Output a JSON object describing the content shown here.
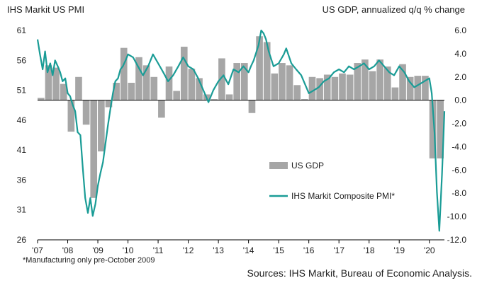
{
  "colors": {
    "bar": "#a6a6a6",
    "line": "#1a9c96",
    "axis": "#000000"
  },
  "chart_data": {
    "type": "bar+line",
    "left_axis_title": "IHS Markit US PMI",
    "right_axis_title": "US GDP, annualized q/q % change",
    "left_ticks": [
      "61",
      "56",
      "51",
      "46",
      "41",
      "36",
      "31",
      "26"
    ],
    "right_ticks": [
      "6.0",
      "4.0",
      "2.0",
      "0.0",
      "-2.0",
      "-4.0",
      "-6.0",
      "-8.0",
      "-10.0",
      "-12.0"
    ],
    "x_ticks": [
      "'07",
      "'08",
      "'09",
      "'10",
      "'11",
      "'12",
      "'13",
      "'14",
      "'15",
      "'16",
      "'17",
      "'18",
      "'19",
      "'20"
    ],
    "ylim_left": [
      26,
      61
    ],
    "ylim_right": [
      -12,
      6
    ],
    "legend": [
      {
        "name": "US GDP",
        "type": "bar"
      },
      {
        "name": "IHS Markit Composite PMI*",
        "type": "line"
      }
    ],
    "series": [
      {
        "name": "US GDP",
        "type": "bar",
        "axis": "right",
        "x": [
          2007.0,
          2007.25,
          2007.5,
          2007.75,
          2008.0,
          2008.25,
          2008.5,
          2008.75,
          2009.0,
          2009.25,
          2009.5,
          2009.75,
          2010.0,
          2010.25,
          2010.5,
          2010.75,
          2011.0,
          2011.25,
          2011.5,
          2011.75,
          2012.0,
          2012.25,
          2012.5,
          2012.75,
          2013.0,
          2013.25,
          2013.5,
          2013.75,
          2014.0,
          2014.25,
          2014.5,
          2014.75,
          2015.0,
          2015.25,
          2015.5,
          2015.75,
          2016.0,
          2016.25,
          2016.5,
          2016.75,
          2017.0,
          2017.25,
          2017.5,
          2017.75,
          2018.0,
          2018.25,
          2018.5,
          2018.75,
          2019.0,
          2019.25,
          2019.5,
          2019.75,
          2020.0,
          2020.25
        ],
        "values": [
          0.2,
          3.0,
          2.8,
          1.4,
          -2.7,
          2.0,
          -2.1,
          -8.4,
          -4.4,
          -0.6,
          1.5,
          4.5,
          1.5,
          3.7,
          3.0,
          2.0,
          -1.5,
          2.9,
          0.8,
          4.6,
          2.7,
          1.9,
          0.5,
          0.1,
          3.6,
          0.5,
          3.2,
          3.2,
          -1.1,
          5.5,
          5.0,
          2.3,
          3.2,
          3.0,
          1.3,
          0.1,
          2.0,
          1.9,
          2.2,
          2.0,
          2.3,
          2.2,
          3.2,
          3.5,
          2.5,
          3.5,
          2.9,
          1.1,
          3.1,
          2.0,
          2.1,
          2.1,
          -5.0,
          -5.0
        ]
      },
      {
        "name": "IHS Markit Composite PMI*",
        "type": "line",
        "axis": "left",
        "x": [
          2007.0,
          2007.08,
          2007.17,
          2007.25,
          2007.33,
          2007.42,
          2007.5,
          2007.58,
          2007.67,
          2007.75,
          2007.83,
          2007.92,
          2008.0,
          2008.08,
          2008.17,
          2008.25,
          2008.33,
          2008.42,
          2008.5,
          2008.58,
          2008.67,
          2008.75,
          2008.83,
          2008.92,
          2009.0,
          2009.08,
          2009.17,
          2009.25,
          2009.33,
          2009.42,
          2009.5,
          2009.58,
          2009.67,
          2009.75,
          2009.83,
          2009.92,
          2010.0,
          2010.17,
          2010.33,
          2010.5,
          2010.67,
          2010.83,
          2011.0,
          2011.17,
          2011.33,
          2011.5,
          2011.67,
          2011.83,
          2012.0,
          2012.17,
          2012.33,
          2012.5,
          2012.67,
          2012.83,
          2013.0,
          2013.17,
          2013.33,
          2013.5,
          2013.67,
          2013.83,
          2014.0,
          2014.08,
          2014.17,
          2014.33,
          2014.42,
          2014.5,
          2014.58,
          2014.67,
          2014.83,
          2015.0,
          2015.17,
          2015.25,
          2015.42,
          2015.58,
          2015.75,
          2016.0,
          2016.17,
          2016.33,
          2016.5,
          2016.67,
          2016.83,
          2017.0,
          2017.17,
          2017.33,
          2017.5,
          2017.67,
          2017.83,
          2018.0,
          2018.17,
          2018.33,
          2018.5,
          2018.67,
          2018.83,
          2019.0,
          2019.17,
          2019.33,
          2019.5,
          2019.67,
          2019.83,
          2020.0,
          2020.08,
          2020.17,
          2020.25,
          2020.33,
          2020.42,
          2020.5
        ],
        "values": [
          59.5,
          57.0,
          54.5,
          57.5,
          54.0,
          55.5,
          53.5,
          56.0,
          55.0,
          54.0,
          52.5,
          53.0,
          50.5,
          50.0,
          48.5,
          47.5,
          44.0,
          43.5,
          38.0,
          33.0,
          30.5,
          33.0,
          30.0,
          32.0,
          35.0,
          37.0,
          39.0,
          42.0,
          45.0,
          48.0,
          50.5,
          52.5,
          53.0,
          54.5,
          55.0,
          56.0,
          57.0,
          56.5,
          55.0,
          53.5,
          55.0,
          57.0,
          55.5,
          54.0,
          52.5,
          53.5,
          55.0,
          56.5,
          55.0,
          54.5,
          53.0,
          51.0,
          49.0,
          51.0,
          52.5,
          53.5,
          52.0,
          54.5,
          54.0,
          55.0,
          54.0,
          55.0,
          56.0,
          58.5,
          61.0,
          60.5,
          59.5,
          57.5,
          55.0,
          55.5,
          57.0,
          58.0,
          55.5,
          54.5,
          53.5,
          50.5,
          51.0,
          51.5,
          52.5,
          53.0,
          54.0,
          54.5,
          54.0,
          55.0,
          54.5,
          55.0,
          55.5,
          54.5,
          55.0,
          56.0,
          55.0,
          54.0,
          53.5,
          55.0,
          54.0,
          52.5,
          51.5,
          52.0,
          52.5,
          53.0,
          50.5,
          44.0,
          34.0,
          27.5,
          37.0,
          47.5
        ]
      }
    ],
    "footnote": "*Manufacturing  only pre-October 2009",
    "source": "Sources: IHS Markit, Bureau of Economic Analysis."
  }
}
